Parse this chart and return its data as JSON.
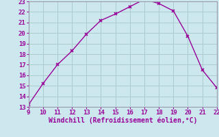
{
  "x": [
    9,
    10,
    11,
    12,
    13,
    14,
    15,
    16,
    17,
    18,
    19,
    20,
    21,
    22
  ],
  "y": [
    13.2,
    15.2,
    17.0,
    18.3,
    19.9,
    21.2,
    21.8,
    22.5,
    23.2,
    22.8,
    22.1,
    19.7,
    16.5,
    14.8
  ],
  "xlim": [
    9,
    22
  ],
  "ylim": [
    13,
    23
  ],
  "xticks": [
    9,
    10,
    11,
    12,
    13,
    14,
    15,
    16,
    17,
    18,
    19,
    20,
    21,
    22
  ],
  "yticks": [
    13,
    14,
    15,
    16,
    17,
    18,
    19,
    20,
    21,
    22,
    23
  ],
  "xlabel": "Windchill (Refroidissement éolien,°C)",
  "line_color": "#990099",
  "marker": "x",
  "bg_color": "#cce8ee",
  "grid_color": "#aacccc",
  "axis_label_color": "#990099",
  "tick_label_color": "#990099",
  "spine_color": "#9999aa",
  "xlabel_fontsize": 7.0,
  "tick_fontsize": 6.5
}
